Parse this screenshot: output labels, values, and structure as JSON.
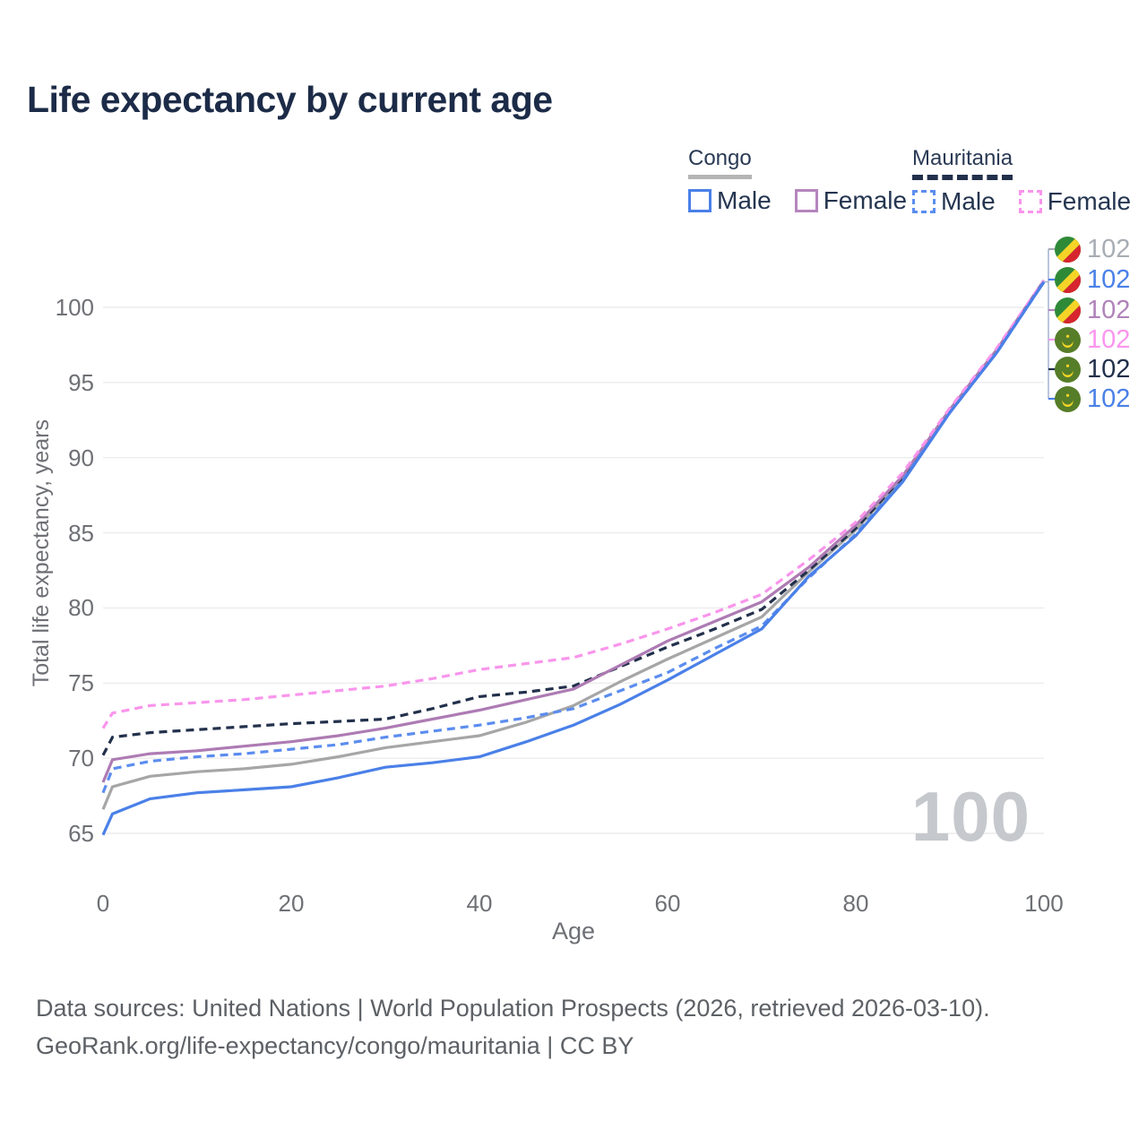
{
  "title": "Life expectancy by current age",
  "legend": {
    "congo": {
      "name": "Congo",
      "male": "Male",
      "female": "Female"
    },
    "mauritania": {
      "name": "Mauritania",
      "male": "Male",
      "female": "Female"
    }
  },
  "colors": {
    "male_blue": "#4a80e8",
    "male_blue_dashed": "#5b8def",
    "congo_female_purple": "#ad7bb3",
    "mauritania_female_pink": "#f995ec",
    "congo_total_gray": "#a6a6a6",
    "mauritania_total_navy": "#22304b",
    "grid": "#ececec",
    "tick_text": "#6e7075",
    "title_text": "#1c2b47",
    "watermark_text": "#c5c8cc",
    "footer_text": "#5d6166",
    "leader_line": "#a9b6d3"
  },
  "watermark": "100",
  "end_labels": [
    {
      "series": "Congo",
      "flag": "congo",
      "value": "102",
      "color": "#a8adb4"
    },
    {
      "series": "Congo Male",
      "flag": "congo",
      "value": "102",
      "color": "#4a80e8"
    },
    {
      "series": "Congo Female",
      "flag": "congo",
      "value": "102",
      "color": "#b083ba"
    },
    {
      "series": "Mauritania Female",
      "flag": "mauritania",
      "value": "102",
      "color": "#fa96ee"
    },
    {
      "series": "Mauritania",
      "flag": "mauritania",
      "value": "102",
      "color": "#22304b"
    },
    {
      "series": "Mauritania Male",
      "flag": "mauritania",
      "value": "102",
      "color": "#4a80e8"
    }
  ],
  "footer": {
    "line1": "Data sources: United Nations | World Population Prospects (2026, retrieved 2026-03-10).",
    "line2": "GeoRank.org/life-expectancy/congo/mauritania | CC BY"
  },
  "chart_data": {
    "type": "line",
    "title": "Life expectancy by current age",
    "xlabel": "Age",
    "ylabel": "Total life expectancy, years",
    "x_ticks": [
      0,
      20,
      40,
      60,
      80,
      100
    ],
    "y_ticks": [
      65,
      70,
      75,
      80,
      85,
      90,
      95,
      100
    ],
    "xlim": [
      0,
      100
    ],
    "ylim": [
      64,
      103
    ],
    "grid": true,
    "legend_position": "top-right",
    "x": [
      0,
      1,
      5,
      10,
      15,
      20,
      25,
      30,
      35,
      40,
      45,
      50,
      55,
      60,
      65,
      70,
      75,
      80,
      85,
      90,
      95,
      100
    ],
    "series": [
      {
        "name": "Congo",
        "country": "Congo",
        "sex": "Both",
        "style": "solid",
        "color": "#a6a6a6",
        "values": [
          66.6,
          68.1,
          68.8,
          69.1,
          69.3,
          69.6,
          70.1,
          70.7,
          71.1,
          71.5,
          72.4,
          73.5,
          75.1,
          76.6,
          78.0,
          79.4,
          82.4,
          85.2,
          88.6,
          93.1,
          97.1,
          101.7
        ]
      },
      {
        "name": "Mauritania",
        "country": "Mauritania",
        "sex": "Both",
        "style": "dashed",
        "color": "#22304b",
        "values": [
          70.2,
          71.4,
          71.7,
          71.9,
          72.1,
          72.3,
          72.45,
          72.6,
          73.3,
          74.1,
          74.4,
          74.8,
          76.1,
          77.4,
          78.6,
          79.9,
          82.5,
          85.3,
          88.7,
          93.1,
          97.1,
          101.7
        ]
      },
      {
        "name": "Congo Female",
        "country": "Congo",
        "sex": "Female",
        "style": "solid",
        "color": "#ad7bb3",
        "values": [
          68.4,
          69.9,
          70.3,
          70.5,
          70.8,
          71.1,
          71.5,
          72.0,
          72.6,
          73.2,
          73.9,
          74.6,
          76.2,
          77.8,
          79.1,
          80.4,
          82.7,
          85.5,
          88.8,
          93.2,
          97.2,
          101.8
        ]
      },
      {
        "name": "Mauritania Female",
        "country": "Mauritania",
        "sex": "Female",
        "style": "dashed",
        "color": "#f995ec",
        "values": [
          72.0,
          73.0,
          73.5,
          73.7,
          73.9,
          74.2,
          74.5,
          74.8,
          75.3,
          75.9,
          76.3,
          76.7,
          77.6,
          78.6,
          79.7,
          80.9,
          83.2,
          85.7,
          89.0,
          93.3,
          97.3,
          101.8
        ]
      },
      {
        "name": "Mauritania Male",
        "country": "Mauritania",
        "sex": "Male",
        "style": "dashed",
        "color": "#5b8def",
        "values": [
          67.7,
          69.3,
          69.8,
          70.1,
          70.3,
          70.6,
          70.9,
          71.4,
          71.8,
          72.2,
          72.7,
          73.3,
          74.5,
          75.7,
          77.3,
          78.8,
          82.0,
          84.9,
          88.5,
          93.0,
          97.0,
          101.7
        ]
      },
      {
        "name": "Congo Male",
        "country": "Congo",
        "sex": "Male",
        "style": "solid",
        "color": "#4a80e8",
        "values": [
          64.9,
          66.3,
          67.3,
          67.7,
          67.9,
          68.1,
          68.7,
          69.4,
          69.7,
          70.1,
          71.1,
          72.2,
          73.6,
          75.2,
          76.9,
          78.6,
          82.1,
          84.8,
          88.4,
          93.0,
          97.0,
          101.7
        ]
      }
    ]
  }
}
